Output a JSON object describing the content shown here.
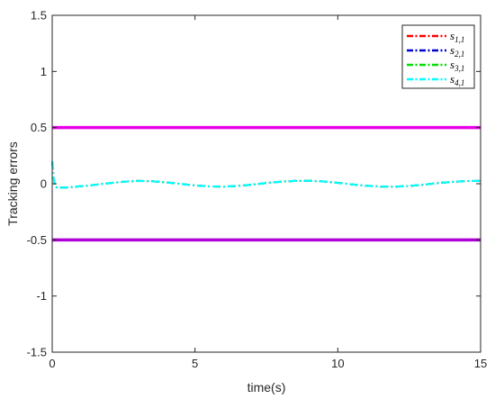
{
  "chart_data": {
    "type": "line",
    "xlabel": "time(s)",
    "ylabel": "Tracking errors",
    "xlim": [
      0,
      15
    ],
    "ylim": [
      -1.5,
      1.5
    ],
    "x_ticks": [
      0,
      5,
      10,
      15
    ],
    "y_ticks": [
      -1.5,
      -1,
      -0.5,
      0,
      0.5,
      1,
      1.5
    ],
    "x_tick_labels": [
      "0",
      "5",
      "10",
      "15"
    ],
    "y_tick_labels": [
      "-1.5",
      "-1",
      "-0.5",
      "0",
      "0.5",
      "1",
      "1.5"
    ],
    "grid": false,
    "legend_position": "top-right",
    "bounds": [
      {
        "y": 0.5,
        "color": "#e800e8"
      },
      {
        "y": -0.5,
        "color": "#b000d8"
      }
    ],
    "x": [
      0,
      0.05,
      0.1,
      0.2,
      0.3,
      0.5,
      0.75,
      1,
      1.5,
      2,
      2.5,
      3,
      3.5,
      4,
      4.5,
      5,
      5.5,
      6,
      6.5,
      7,
      7.5,
      8,
      8.5,
      9,
      9.5,
      10,
      10.5,
      11,
      11.5,
      12,
      12.5,
      13,
      13.5,
      14,
      14.5,
      15
    ],
    "series": [
      {
        "name": "s",
        "sub": "1,1",
        "color": "#ff0000",
        "values": [
          0.2,
          0.05,
          -0.02,
          -0.04,
          -0.035,
          -0.033,
          -0.028,
          -0.022,
          -0.01,
          0.005,
          0.018,
          0.025,
          0.022,
          0.012,
          -0.002,
          -0.015,
          -0.024,
          -0.026,
          -0.02,
          -0.008,
          0.006,
          0.018,
          0.025,
          0.026,
          0.02,
          0.008,
          -0.006,
          -0.018,
          -0.025,
          -0.026,
          -0.02,
          -0.008,
          0.005,
          0.016,
          0.024,
          0.025
        ]
      },
      {
        "name": "s",
        "sub": "2,1",
        "color": "#0000d0",
        "values": [
          0.2,
          0.05,
          -0.02,
          -0.04,
          -0.035,
          -0.033,
          -0.028,
          -0.022,
          -0.01,
          0.005,
          0.018,
          0.025,
          0.022,
          0.012,
          -0.002,
          -0.015,
          -0.024,
          -0.026,
          -0.02,
          -0.008,
          0.006,
          0.018,
          0.025,
          0.026,
          0.02,
          0.008,
          -0.006,
          -0.018,
          -0.025,
          -0.026,
          -0.02,
          -0.008,
          0.005,
          0.016,
          0.024,
          0.025
        ]
      },
      {
        "name": "s",
        "sub": "3,1",
        "color": "#00e000",
        "values": [
          0.2,
          0.05,
          -0.02,
          -0.04,
          -0.035,
          -0.033,
          -0.028,
          -0.022,
          -0.01,
          0.005,
          0.018,
          0.025,
          0.022,
          0.012,
          -0.002,
          -0.015,
          -0.024,
          -0.026,
          -0.02,
          -0.008,
          0.006,
          0.018,
          0.025,
          0.026,
          0.02,
          0.008,
          -0.006,
          -0.018,
          -0.025,
          -0.026,
          -0.02,
          -0.008,
          0.005,
          0.016,
          0.024,
          0.025
        ]
      },
      {
        "name": "s",
        "sub": "4,1",
        "color": "#00ffff",
        "values": [
          0.2,
          0.05,
          -0.02,
          -0.04,
          -0.035,
          -0.033,
          -0.028,
          -0.022,
          -0.01,
          0.005,
          0.018,
          0.025,
          0.022,
          0.012,
          -0.002,
          -0.015,
          -0.024,
          -0.026,
          -0.02,
          -0.008,
          0.006,
          0.018,
          0.025,
          0.026,
          0.02,
          0.008,
          -0.006,
          -0.018,
          -0.025,
          -0.026,
          -0.02,
          -0.008,
          0.005,
          0.016,
          0.024,
          0.025
        ]
      }
    ]
  }
}
